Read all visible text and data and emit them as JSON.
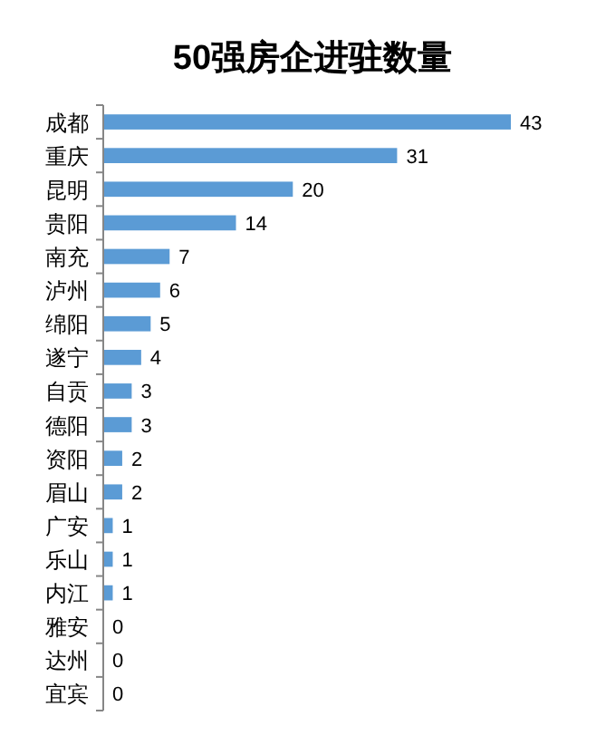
{
  "chart_data": {
    "type": "bar",
    "orientation": "horizontal",
    "title": "50强房企进驻数量",
    "categories": [
      "成都",
      "重庆",
      "昆明",
      "贵阳",
      "南充",
      "泸州",
      "绵阳",
      "遂宁",
      "自贡",
      "德阳",
      "资阳",
      "眉山",
      "广安",
      "乐山",
      "内江",
      "雅安",
      "达州",
      "宜宾"
    ],
    "values": [
      43,
      31,
      20,
      14,
      7,
      6,
      5,
      4,
      3,
      3,
      2,
      2,
      1,
      1,
      1,
      0,
      0,
      0
    ],
    "color": "#5b9bd5",
    "data_labels": true
  }
}
